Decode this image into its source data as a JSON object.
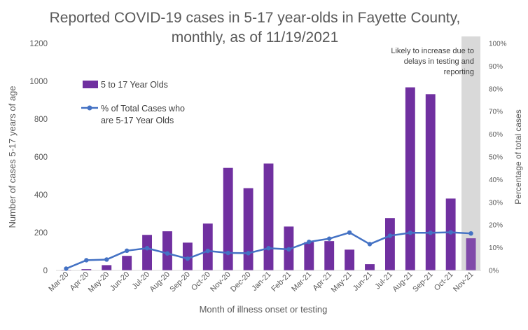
{
  "chart_data": {
    "type": "bar",
    "title_line1": "Reported COVID-19 cases in 5-17 year-olds in Fayette County,",
    "title_line2": "monthly, as of 11/19/2021",
    "xlabel": "Month of illness onset or testing",
    "ylabel_left": "Number of cases 5-17 years of age",
    "ylabel_right": "Percentage of total cases",
    "categories": [
      "Mar-20",
      "Apr-20",
      "May-20",
      "Jun-20",
      "Jul-20",
      "Aug-20",
      "Sep-20",
      "Oct-20",
      "Nov-20",
      "Dec-20",
      "Jan-21",
      "Feb-21",
      "Mar-21",
      "Apr-21",
      "May-21",
      "Jun-21",
      "Jul-21",
      "Aug-21",
      "Sep-21",
      "Oct-21",
      "Nov-21"
    ],
    "ylim_left": [
      0,
      1200
    ],
    "yticks_left": [
      "0",
      "200",
      "400",
      "600",
      "800",
      "1000",
      "1200"
    ],
    "ylim_right": [
      0,
      100
    ],
    "yticks_right": [
      "0%",
      "10%",
      "20%",
      "30%",
      "40%",
      "50%",
      "60%",
      "70%",
      "80%",
      "90%",
      "100%"
    ],
    "series": [
      {
        "name": "5 to 17 Year Olds",
        "type": "bar",
        "color": "#7030a0",
        "values": [
          3,
          7,
          28,
          77,
          188,
          207,
          147,
          248,
          542,
          435,
          565,
          232,
          150,
          155,
          110,
          33,
          277,
          968,
          932,
          380,
          170
        ]
      },
      {
        "name": "% of Total Cases who are 5-17 Year Olds",
        "type": "line",
        "color": "#4472c4",
        "values": [
          0.8,
          4.5,
          4.8,
          8.7,
          9.8,
          7.5,
          5.2,
          8.6,
          7.7,
          7.6,
          9.8,
          9.3,
          12.6,
          14.0,
          16.7,
          11.6,
          15.3,
          16.6,
          16.6,
          16.8,
          16.3
        ]
      }
    ],
    "annotation": {
      "lines": [
        "Likely to increase due to",
        "delays in testing and",
        "reporting"
      ],
      "shaded_category": "Nov-21",
      "shade_color": "#d9d9d9"
    },
    "legend_position": "top-left",
    "grid": false
  }
}
